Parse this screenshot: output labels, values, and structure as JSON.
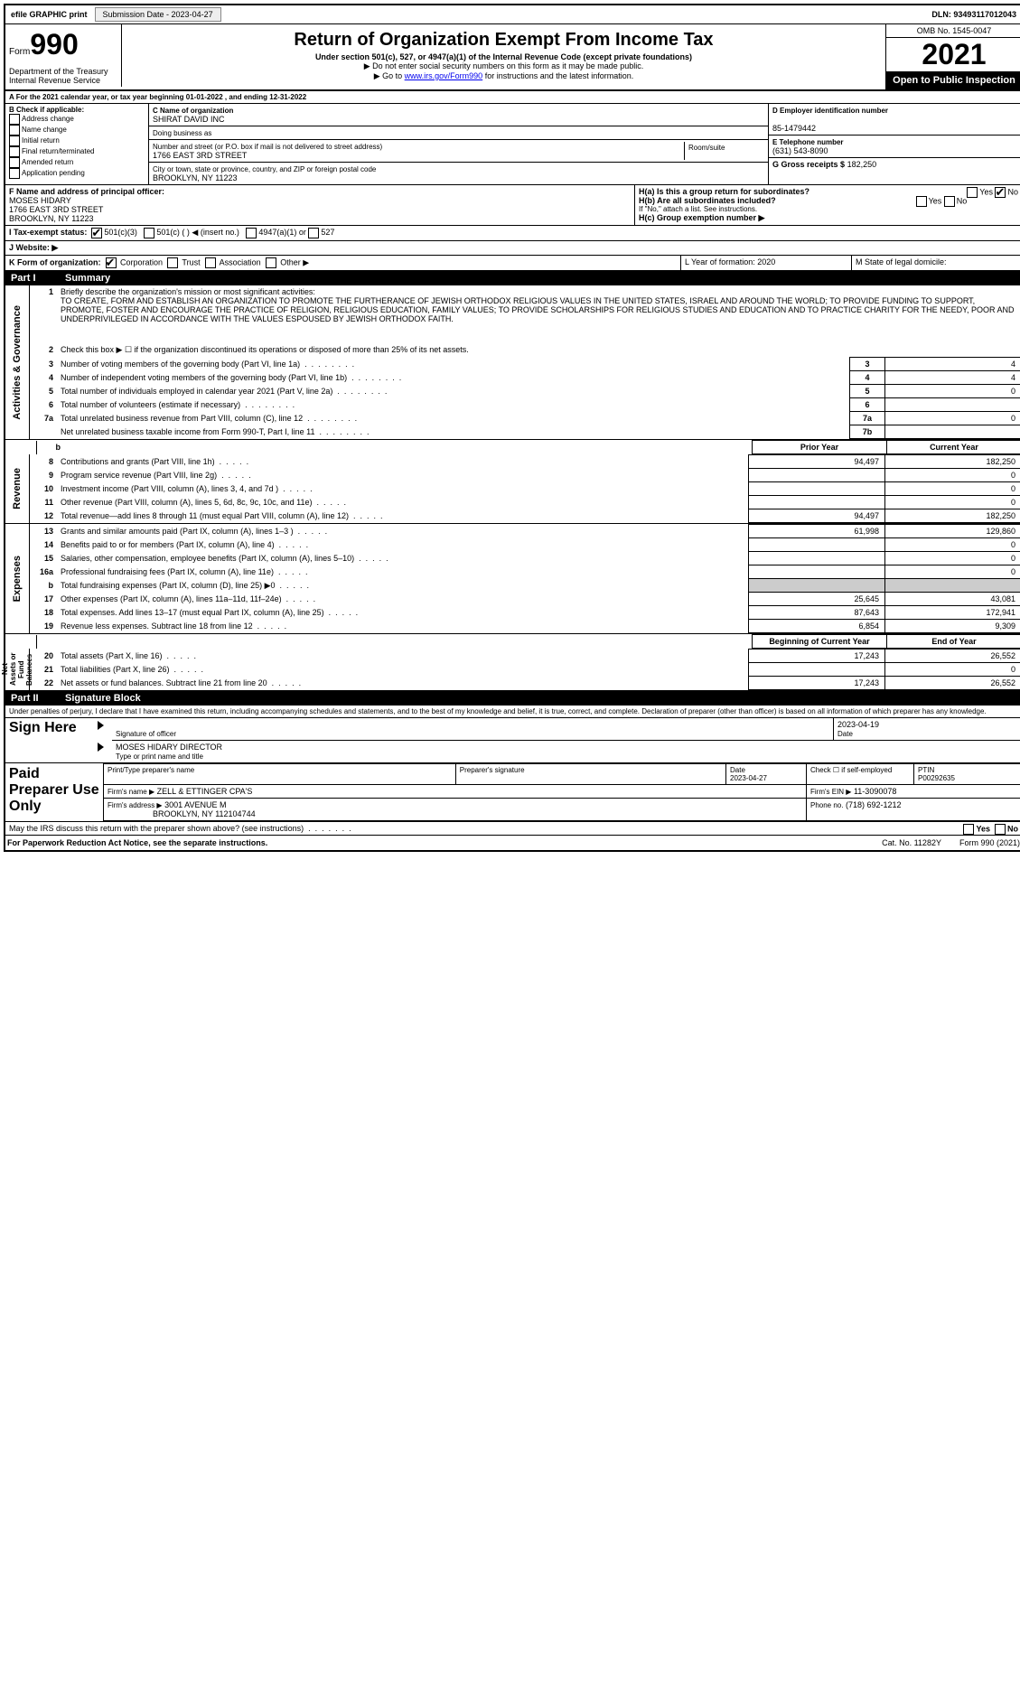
{
  "topbar": {
    "efile": "efile GRAPHIC print",
    "submission_label": "Submission Date - 2023-04-27",
    "dln": "DLN: 93493117012043"
  },
  "header": {
    "form_prefix": "Form",
    "form_number": "990",
    "title": "Return of Organization Exempt From Income Tax",
    "subtitle": "Under section 501(c), 527, or 4947(a)(1) of the Internal Revenue Code (except private foundations)",
    "note1": "▶ Do not enter social security numbers on this form as it may be made public.",
    "note2_pre": "▶ Go to ",
    "note2_link": "www.irs.gov/Form990",
    "note2_post": " for instructions and the latest information.",
    "omb": "OMB No. 1545-0047",
    "year": "2021",
    "inspect": "Open to Public Inspection",
    "dept": "Department of the Treasury\nInternal Revenue Service"
  },
  "period": {
    "line": "A For the 2021 calendar year, or tax year beginning 01-01-2022   , and ending 12-31-2022"
  },
  "boxB": {
    "label": "B Check if applicable:",
    "items": [
      "Address change",
      "Name change",
      "Initial return",
      "Final return/terminated",
      "Amended return",
      "Application pending"
    ]
  },
  "boxC": {
    "label": "C Name of organization",
    "name": "SHIRAT DAVID INC",
    "dba_label": "Doing business as",
    "addr_label": "Number and street (or P.O. box if mail is not delivered to street address)",
    "room_label": "Room/suite",
    "addr": "1766 EAST 3RD STREET",
    "city_label": "City or town, state or province, country, and ZIP or foreign postal code",
    "city": "BROOKLYN, NY  11223"
  },
  "boxD": {
    "label": "D Employer identification number",
    "value": "85-1479442"
  },
  "boxE": {
    "label": "E Telephone number",
    "value": "(631) 543-8090"
  },
  "boxG": {
    "label": "G Gross receipts $",
    "value": "182,250"
  },
  "boxF": {
    "label": "F  Name and address of principal officer:",
    "name": "MOSES HIDARY",
    "addr1": "1766 EAST 3RD STREET",
    "addr2": "BROOKLYN, NY  11223"
  },
  "boxH": {
    "ha": "H(a)  Is this a group return for subordinates?",
    "hb": "H(b)  Are all subordinates included?",
    "hb_note": "If \"No,\" attach a list. See instructions.",
    "hc": "H(c)  Group exemption number ▶",
    "yes": "Yes",
    "no": "No"
  },
  "boxI": {
    "label": "I     Tax-exempt status:",
    "opts": [
      "501(c)(3)",
      "501(c) (   ) ◀ (insert no.)",
      "4947(a)(1) or",
      "527"
    ]
  },
  "boxJ": {
    "label": "J    Website: ▶"
  },
  "boxK": {
    "label": "K Form of organization:",
    "opts": [
      "Corporation",
      "Trust",
      "Association",
      "Other ▶"
    ]
  },
  "boxL": {
    "label": "L Year of formation: 2020"
  },
  "boxM": {
    "label": "M State of legal domicile:"
  },
  "part1": {
    "header": "Part I      Summary",
    "stripe1": "Activities & Governance",
    "stripe2": "Revenue",
    "stripe3": "Expenses",
    "stripe4": "Net Assets or Fund Balances",
    "l1_label": "Briefly describe the organization's mission or most significant activities:",
    "l1_text": "TO CREATE, FORM AND ESTABLISH AN ORGANIZATION TO PROMOTE THE FURTHERANCE OF JEWISH ORTHODOX RELIGIOUS VALUES IN THE UNITED STATES, ISRAEL AND AROUND THE WORLD; TO PROVIDE FUNDING TO SUPPORT, PROMOTE, FOSTER AND ENCOURAGE THE PRACTICE OF RELIGION, RELIGIOUS EDUCATION, FAMILY VALUES; TO PROVIDE SCHOLARSHIPS FOR RELIGIOUS STUDIES AND EDUCATION AND TO PRACTICE CHARITY FOR THE NEEDY, POOR AND UNDERPRIVILEGED IN ACCORDANCE WITH THE VALUES ESPOUSED BY JEWISH ORTHODOX FAITH.",
    "l2": "Check this box ▶ ☐ if the organization discontinued its operations or disposed of more than 25% of its net assets.",
    "rows_gov": [
      {
        "n": "3",
        "d": "Number of voting members of the governing body (Part VI, line 1a)",
        "b": "3",
        "v": "4"
      },
      {
        "n": "4",
        "d": "Number of independent voting members of the governing body (Part VI, line 1b)",
        "b": "4",
        "v": "4"
      },
      {
        "n": "5",
        "d": "Total number of individuals employed in calendar year 2021 (Part V, line 2a)",
        "b": "5",
        "v": "0"
      },
      {
        "n": "6",
        "d": "Total number of volunteers (estimate if necessary)",
        "b": "6",
        "v": ""
      },
      {
        "n": "7a",
        "d": "Total unrelated business revenue from Part VIII, column (C), line 12",
        "b": "7a",
        "v": "0"
      },
      {
        "n": "",
        "d": "Net unrelated business taxable income from Form 990-T, Part I, line 11",
        "b": "7b",
        "v": ""
      }
    ],
    "col_prior": "Prior Year",
    "col_current": "Current Year",
    "rows_rev": [
      {
        "n": "8",
        "d": "Contributions and grants (Part VIII, line 1h)",
        "p": "94,497",
        "c": "182,250"
      },
      {
        "n": "9",
        "d": "Program service revenue (Part VIII, line 2g)",
        "p": "",
        "c": "0"
      },
      {
        "n": "10",
        "d": "Investment income (Part VIII, column (A), lines 3, 4, and 7d )",
        "p": "",
        "c": "0"
      },
      {
        "n": "11",
        "d": "Other revenue (Part VIII, column (A), lines 5, 6d, 8c, 9c, 10c, and 11e)",
        "p": "",
        "c": "0"
      },
      {
        "n": "12",
        "d": "Total revenue—add lines 8 through 11 (must equal Part VIII, column (A), line 12)",
        "p": "94,497",
        "c": "182,250"
      }
    ],
    "rows_exp": [
      {
        "n": "13",
        "d": "Grants and similar amounts paid (Part IX, column (A), lines 1–3 )",
        "p": "61,998",
        "c": "129,860"
      },
      {
        "n": "14",
        "d": "Benefits paid to or for members (Part IX, column (A), line 4)",
        "p": "",
        "c": "0"
      },
      {
        "n": "15",
        "d": "Salaries, other compensation, employee benefits (Part IX, column (A), lines 5–10)",
        "p": "",
        "c": "0"
      },
      {
        "n": "16a",
        "d": "Professional fundraising fees (Part IX, column (A), line 11e)",
        "p": "",
        "c": "0"
      },
      {
        "n": "b",
        "d": "Total fundraising expenses (Part IX, column (D), line 25) ▶0",
        "p": "grey",
        "c": "grey"
      },
      {
        "n": "17",
        "d": "Other expenses (Part IX, column (A), lines 11a–11d, 11f–24e)",
        "p": "25,645",
        "c": "43,081"
      },
      {
        "n": "18",
        "d": "Total expenses. Add lines 13–17 (must equal Part IX, column (A), line 25)",
        "p": "87,643",
        "c": "172,941"
      },
      {
        "n": "19",
        "d": "Revenue less expenses. Subtract line 18 from line 12",
        "p": "6,854",
        "c": "9,309"
      }
    ],
    "col_boy": "Beginning of Current Year",
    "col_eoy": "End of Year",
    "rows_net": [
      {
        "n": "20",
        "d": "Total assets (Part X, line 16)",
        "p": "17,243",
        "c": "26,552"
      },
      {
        "n": "21",
        "d": "Total liabilities (Part X, line 26)",
        "p": "",
        "c": "0"
      },
      {
        "n": "22",
        "d": "Net assets or fund balances. Subtract line 21 from line 20",
        "p": "17,243",
        "c": "26,552"
      }
    ]
  },
  "part2": {
    "header": "Part II     Signature Block",
    "decl": "Under penalties of perjury, I declare that I have examined this return, including accompanying schedules and statements, and to the best of my knowledge and belief, it is true, correct, and complete. Declaration of preparer (other than officer) is based on all information of which preparer has any knowledge."
  },
  "sign": {
    "label": "Sign Here",
    "sig_label": "Signature of officer",
    "date": "2023-04-19",
    "date_label": "Date",
    "name": "MOSES HIDARY  DIRECTOR",
    "name_label": "Type or print name and title"
  },
  "paid": {
    "label": "Paid Preparer Use Only",
    "h1": "Print/Type preparer's name",
    "h2": "Preparer's signature",
    "h3": "Date",
    "h3v": "2023-04-27",
    "h4": "Check ☐ if self-employed",
    "h5": "PTIN",
    "h5v": "P00292635",
    "firm_label": "Firm's name    ▶",
    "firm": "ZELL & ETTINGER CPA'S",
    "ein_label": "Firm's EIN ▶",
    "ein": "11-3090078",
    "addr_label": "Firm's address ▶",
    "addr": "3001 AVENUE M",
    "addr2": "BROOKLYN, NY  112104744",
    "phone_label": "Phone no.",
    "phone": "(718) 692-1212"
  },
  "footer": {
    "discuss": "May the IRS discuss this return with the preparer shown above? (see instructions)",
    "yes": "Yes",
    "no": "No",
    "pra": "For Paperwork Reduction Act Notice, see the separate instructions.",
    "cat": "Cat. No. 11282Y",
    "form": "Form 990 (2021)"
  }
}
